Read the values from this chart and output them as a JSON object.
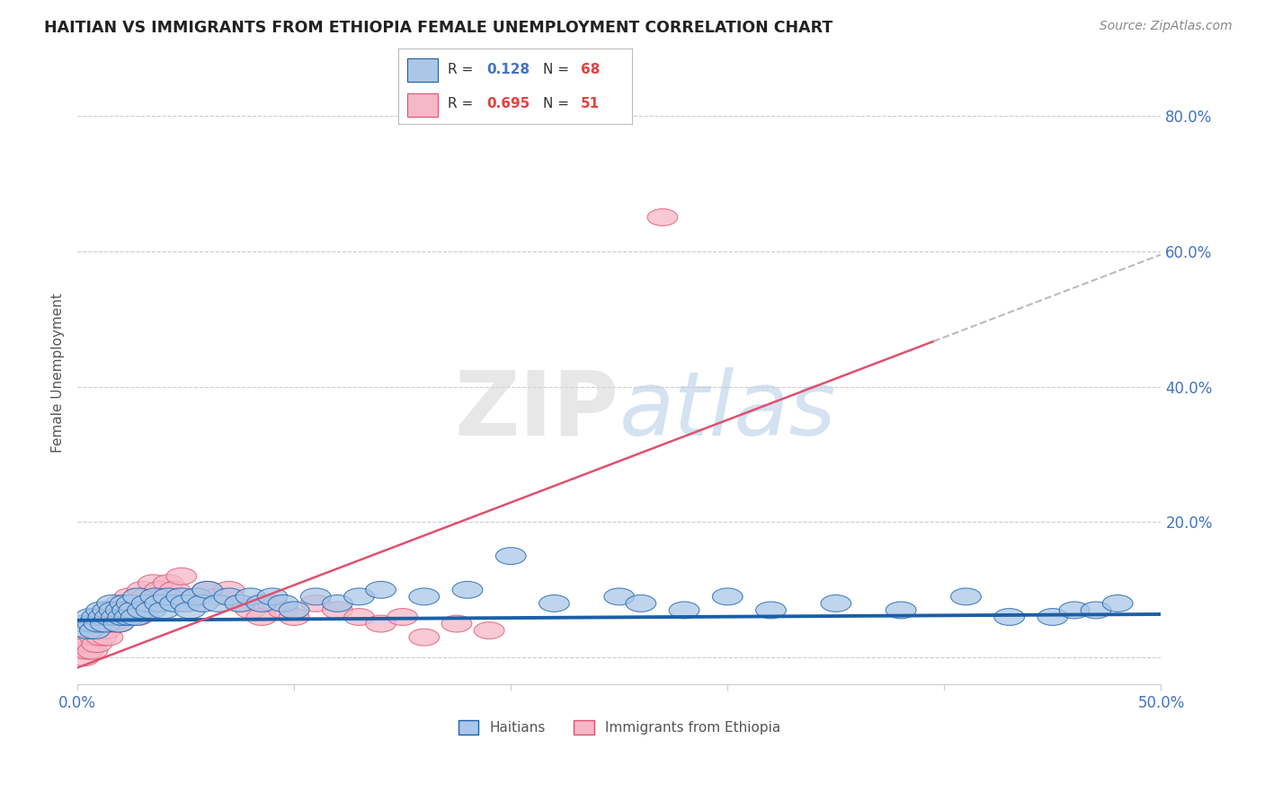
{
  "title": "HAITIAN VS IMMIGRANTS FROM ETHIOPIA FEMALE UNEMPLOYMENT CORRELATION CHART",
  "source": "Source: ZipAtlas.com",
  "ylabel": "Female Unemployment",
  "y_ticks": [
    0.0,
    0.2,
    0.4,
    0.6,
    0.8
  ],
  "y_tick_labels": [
    "",
    "20.0%",
    "40.0%",
    "60.0%",
    "80.0%"
  ],
  "xlim": [
    0.0,
    0.5
  ],
  "ylim": [
    -0.04,
    0.88
  ],
  "color_haiti": "#aac7e8",
  "color_ethiopia": "#f5b8c8",
  "color_line_haiti": "#1a5fa8",
  "color_line_ethiopia": "#e05070",
  "color_grid": "#cccccc",
  "background_color": "#ffffff",
  "haiti_slope": 0.018,
  "haiti_intercept": 0.055,
  "ethiopia_slope": 1.22,
  "ethiopia_intercept": -0.015,
  "ethiopia_line_end": 0.395,
  "watermark_color": "#ccddf0",
  "haiti_x": [
    0.003,
    0.005,
    0.006,
    0.007,
    0.008,
    0.009,
    0.01,
    0.011,
    0.012,
    0.013,
    0.014,
    0.015,
    0.016,
    0.017,
    0.018,
    0.019,
    0.02,
    0.021,
    0.022,
    0.023,
    0.024,
    0.025,
    0.026,
    0.027,
    0.028,
    0.03,
    0.032,
    0.034,
    0.036,
    0.038,
    0.04,
    0.042,
    0.045,
    0.048,
    0.05,
    0.052,
    0.055,
    0.058,
    0.06,
    0.065,
    0.07,
    0.075,
    0.08,
    0.085,
    0.09,
    0.095,
    0.1,
    0.11,
    0.12,
    0.13,
    0.14,
    0.16,
    0.18,
    0.2,
    0.22,
    0.25,
    0.26,
    0.28,
    0.3,
    0.32,
    0.35,
    0.38,
    0.41,
    0.43,
    0.45,
    0.46,
    0.47,
    0.48
  ],
  "haiti_y": [
    0.05,
    0.04,
    0.06,
    0.05,
    0.04,
    0.06,
    0.05,
    0.07,
    0.06,
    0.05,
    0.07,
    0.06,
    0.08,
    0.07,
    0.06,
    0.05,
    0.07,
    0.06,
    0.08,
    0.07,
    0.06,
    0.08,
    0.07,
    0.06,
    0.09,
    0.07,
    0.08,
    0.07,
    0.09,
    0.08,
    0.07,
    0.09,
    0.08,
    0.09,
    0.08,
    0.07,
    0.09,
    0.08,
    0.1,
    0.08,
    0.09,
    0.08,
    0.09,
    0.08,
    0.09,
    0.08,
    0.07,
    0.09,
    0.08,
    0.09,
    0.1,
    0.09,
    0.1,
    0.15,
    0.08,
    0.09,
    0.08,
    0.07,
    0.09,
    0.07,
    0.08,
    0.07,
    0.09,
    0.06,
    0.06,
    0.07,
    0.07,
    0.08
  ],
  "ethiopia_x": [
    0.002,
    0.003,
    0.004,
    0.005,
    0.006,
    0.007,
    0.008,
    0.009,
    0.01,
    0.011,
    0.012,
    0.013,
    0.014,
    0.015,
    0.016,
    0.017,
    0.018,
    0.019,
    0.02,
    0.022,
    0.024,
    0.026,
    0.028,
    0.03,
    0.032,
    0.035,
    0.038,
    0.04,
    0.042,
    0.045,
    0.048,
    0.05,
    0.055,
    0.06,
    0.065,
    0.07,
    0.075,
    0.08,
    0.085,
    0.09,
    0.095,
    0.1,
    0.11,
    0.12,
    0.13,
    0.14,
    0.15,
    0.16,
    0.175,
    0.19,
    0.27
  ],
  "ethiopia_y": [
    0.01,
    0.0,
    0.02,
    0.01,
    0.02,
    0.01,
    0.03,
    0.02,
    0.04,
    0.03,
    0.05,
    0.04,
    0.03,
    0.06,
    0.05,
    0.07,
    0.06,
    0.05,
    0.08,
    0.07,
    0.09,
    0.08,
    0.06,
    0.1,
    0.09,
    0.11,
    0.1,
    0.09,
    0.11,
    0.1,
    0.12,
    0.08,
    0.09,
    0.1,
    0.09,
    0.1,
    0.08,
    0.07,
    0.06,
    0.08,
    0.07,
    0.06,
    0.08,
    0.07,
    0.06,
    0.05,
    0.06,
    0.03,
    0.05,
    0.04,
    0.65
  ]
}
